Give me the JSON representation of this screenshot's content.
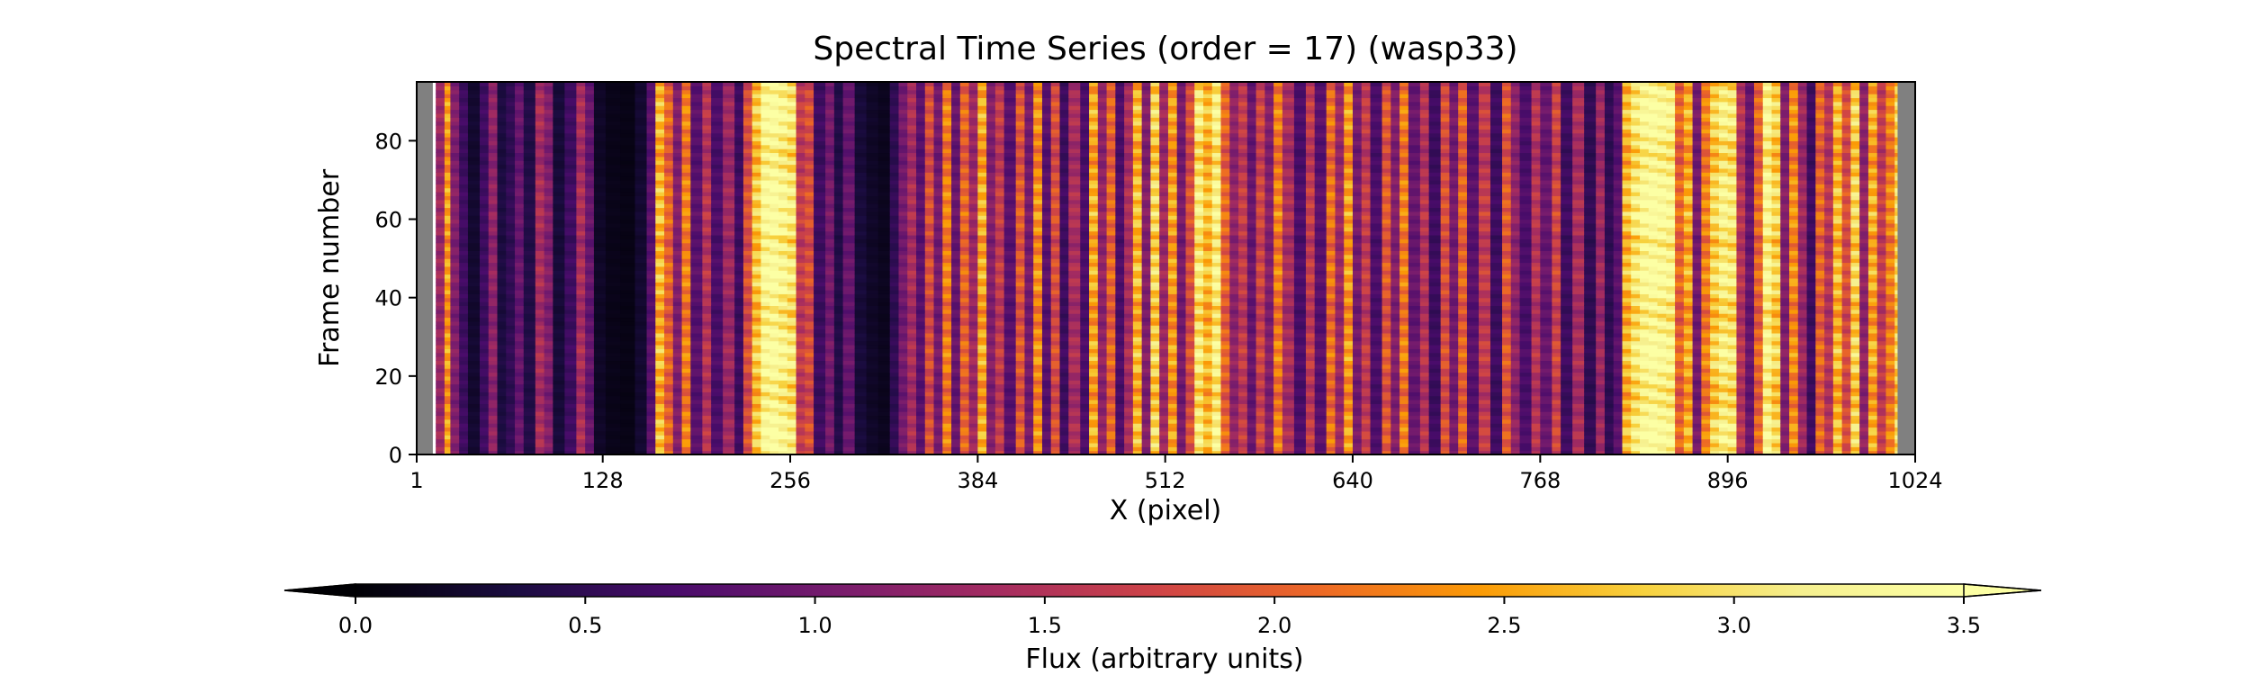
{
  "chart_data": {
    "type": "heatmap",
    "title": "Spectral Time Series (order = 17) (wasp33)",
    "xlabel": "X (pixel)",
    "ylabel": "Frame number",
    "xlim": [
      1,
      1024
    ],
    "ylim": [
      0,
      95
    ],
    "xticks": [
      1,
      128,
      256,
      384,
      512,
      640,
      768,
      896,
      1024
    ],
    "yticks": [
      0,
      20,
      40,
      60,
      80
    ],
    "masked_x_ranges": [
      [
        1,
        12
      ],
      [
        1012,
        1024
      ]
    ],
    "masked_color": "#808080",
    "n_frames": 95,
    "column_flux": [
      [
        14,
        1.3
      ],
      [
        20,
        2.4
      ],
      [
        24,
        1.1
      ],
      [
        30,
        0.6
      ],
      [
        36,
        0.25
      ],
      [
        44,
        0.6
      ],
      [
        50,
        1.2
      ],
      [
        56,
        0.35
      ],
      [
        62,
        0.5
      ],
      [
        68,
        0.9
      ],
      [
        74,
        0.4
      ],
      [
        82,
        1.4
      ],
      [
        88,
        1.1
      ],
      [
        94,
        0.3
      ],
      [
        102,
        0.6
      ],
      [
        110,
        1.4
      ],
      [
        116,
        0.9
      ],
      [
        122,
        0.2
      ],
      [
        130,
        0.12
      ],
      [
        140,
        0.1
      ],
      [
        150,
        0.25
      ],
      [
        158,
        0.8
      ],
      [
        164,
        2.6
      ],
      [
        170,
        2.0
      ],
      [
        176,
        1.1
      ],
      [
        182,
        2.2
      ],
      [
        188,
        0.8
      ],
      [
        196,
        1.5
      ],
      [
        202,
        0.7
      ],
      [
        210,
        1.3
      ],
      [
        218,
        0.6
      ],
      [
        224,
        1.8
      ],
      [
        230,
        2.7
      ],
      [
        236,
        3.3
      ],
      [
        242,
        3.4
      ],
      [
        248,
        3.2
      ],
      [
        254,
        3.0
      ],
      [
        260,
        1.6
      ],
      [
        266,
        1.8
      ],
      [
        272,
        0.6
      ],
      [
        280,
        1.0
      ],
      [
        286,
        0.4
      ],
      [
        292,
        0.9
      ],
      [
        300,
        0.3
      ],
      [
        308,
        0.2
      ],
      [
        316,
        0.15
      ],
      [
        324,
        0.5
      ],
      [
        330,
        1.0
      ],
      [
        336,
        1.4
      ],
      [
        342,
        0.8
      ],
      [
        348,
        1.8
      ],
      [
        354,
        1.0
      ],
      [
        360,
        2.2
      ],
      [
        366,
        0.9
      ],
      [
        372,
        2.0
      ],
      [
        378,
        1.3
      ],
      [
        384,
        2.5
      ],
      [
        390,
        1.1
      ],
      [
        396,
        1.6
      ],
      [
        402,
        0.8
      ],
      [
        410,
        1.9
      ],
      [
        416,
        1.0
      ],
      [
        422,
        2.3
      ],
      [
        428,
        0.8
      ],
      [
        434,
        1.8
      ],
      [
        440,
        0.6
      ],
      [
        446,
        1.4
      ],
      [
        454,
        0.7
      ],
      [
        460,
        2.5
      ],
      [
        466,
        1.2
      ],
      [
        472,
        2.0
      ],
      [
        478,
        0.7
      ],
      [
        484,
        1.4
      ],
      [
        490,
        2.6
      ],
      [
        496,
        1.1
      ],
      [
        502,
        2.8
      ],
      [
        508,
        1.3
      ],
      [
        514,
        2.4
      ],
      [
        520,
        1.0
      ],
      [
        526,
        1.8
      ],
      [
        532,
        3.0
      ],
      [
        538,
        2.6
      ],
      [
        544,
        3.1
      ],
      [
        550,
        2.0
      ],
      [
        556,
        1.2
      ],
      [
        562,
        1.6
      ],
      [
        568,
        0.9
      ],
      [
        574,
        1.7
      ],
      [
        580,
        1.1
      ],
      [
        586,
        2.2
      ],
      [
        592,
        1.4
      ],
      [
        600,
        0.7
      ],
      [
        608,
        1.6
      ],
      [
        614,
        0.8
      ],
      [
        622,
        2.1
      ],
      [
        628,
        1.3
      ],
      [
        634,
        2.4
      ],
      [
        640,
        1.0
      ],
      [
        646,
        1.6
      ],
      [
        652,
        0.7
      ],
      [
        660,
        1.9
      ],
      [
        666,
        1.1
      ],
      [
        672,
        2.2
      ],
      [
        678,
        0.9
      ],
      [
        686,
        1.5
      ],
      [
        692,
        0.6
      ],
      [
        700,
        1.8
      ],
      [
        706,
        1.0
      ],
      [
        712,
        2.0
      ],
      [
        718,
        0.8
      ],
      [
        726,
        1.6
      ],
      [
        734,
        0.6
      ],
      [
        742,
        1.9
      ],
      [
        748,
        1.2
      ],
      [
        754,
        0.7
      ],
      [
        762,
        1.5
      ],
      [
        768,
        0.9
      ],
      [
        776,
        1.7
      ],
      [
        782,
        0.6
      ],
      [
        790,
        1.4
      ],
      [
        798,
        0.5
      ],
      [
        806,
        1.3
      ],
      [
        812,
        0.5
      ],
      [
        818,
        0.8
      ],
      [
        824,
        2.6
      ],
      [
        830,
        3.0
      ],
      [
        836,
        3.3
      ],
      [
        842,
        3.4
      ],
      [
        848,
        3.3
      ],
      [
        854,
        3.2
      ],
      [
        860,
        2.0
      ],
      [
        866,
        2.5
      ],
      [
        872,
        1.0
      ],
      [
        878,
        2.2
      ],
      [
        884,
        2.8
      ],
      [
        890,
        3.1
      ],
      [
        896,
        3.0
      ],
      [
        902,
        1.5
      ],
      [
        908,
        0.9
      ],
      [
        914,
        2.0
      ],
      [
        920,
        3.2
      ],
      [
        926,
        2.8
      ],
      [
        932,
        1.1
      ],
      [
        938,
        2.3
      ],
      [
        944,
        1.3
      ],
      [
        950,
        0.6
      ],
      [
        956,
        2.0
      ],
      [
        962,
        1.5
      ],
      [
        968,
        2.6
      ],
      [
        974,
        1.8
      ],
      [
        980,
        2.8
      ],
      [
        986,
        1.2
      ],
      [
        992,
        2.5
      ],
      [
        998,
        1.6
      ],
      [
        1004,
        2.2
      ],
      [
        1010,
        2.8
      ]
    ],
    "colorbar": {
      "label": "Flux (arbitrary units)",
      "colormap": "inferno",
      "ticks": [
        0.0,
        0.5,
        1.0,
        1.5,
        2.0,
        2.5,
        3.0,
        3.5
      ],
      "tick_labels": [
        "0.0",
        "0.5",
        "1.0",
        "1.5",
        "2.0",
        "2.5",
        "3.0",
        "3.5"
      ],
      "vmin": 0.0,
      "vmax": 3.5,
      "extend": "both",
      "orientation": "horizontal",
      "placement": "bottom"
    }
  }
}
